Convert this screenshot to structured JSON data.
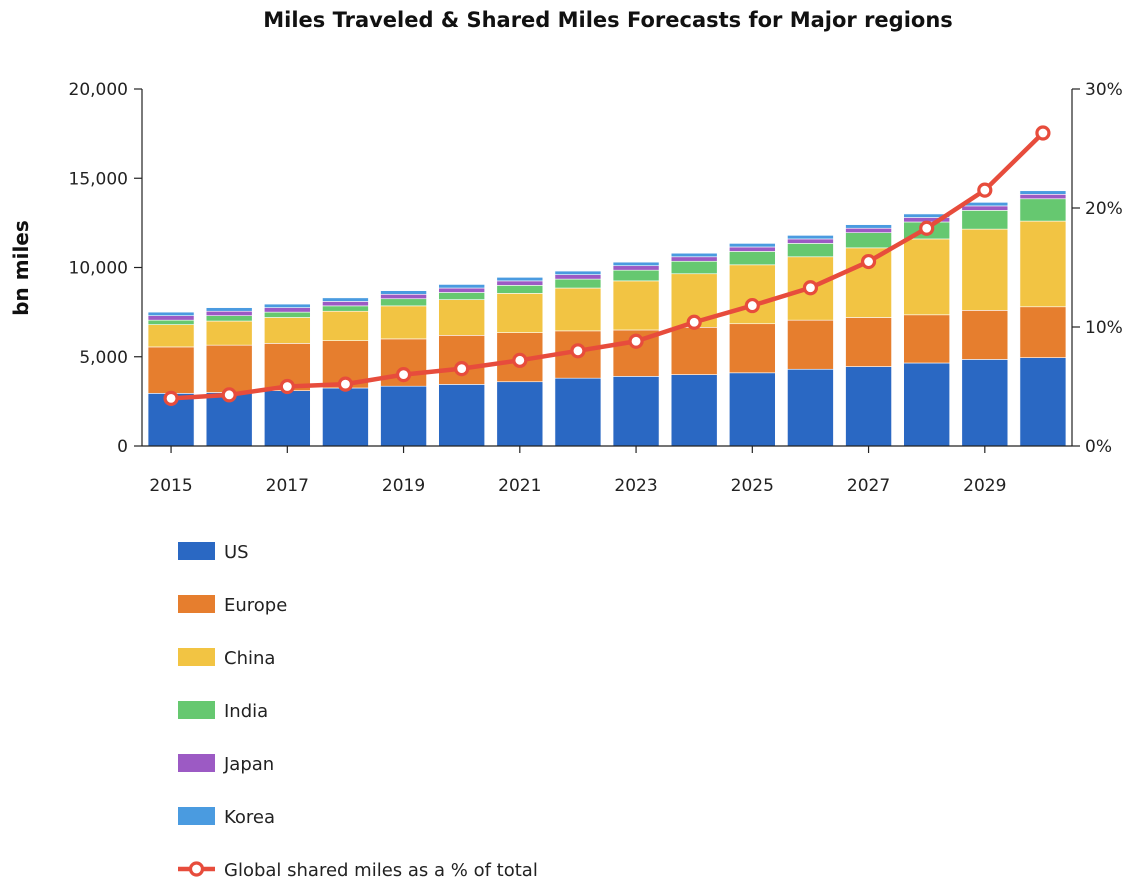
{
  "chart_data": {
    "type": "bar",
    "stacked": true,
    "title": "Miles Traveled & Shared Miles Forecasts for Major regions",
    "ylabel": "bn miles",
    "y2label": "",
    "ylim": [
      0,
      20000
    ],
    "yticks": [
      "0",
      "5,000",
      "10,000",
      "15,000",
      "20,000"
    ],
    "y2lim": [
      0,
      30
    ],
    "y2ticks": [
      "0%",
      "10%",
      "20%",
      "30%"
    ],
    "x": [
      2015,
      2016,
      2017,
      2018,
      2019,
      2020,
      2021,
      2022,
      2023,
      2024,
      2025,
      2026,
      2027,
      2028,
      2029,
      2030
    ],
    "xticks": [
      "2015",
      "2017",
      "2019",
      "2021",
      "2023",
      "2025",
      "2027",
      "2029"
    ],
    "series": [
      {
        "name": "US",
        "color": "#2a68c3",
        "values": [
          2950,
          3000,
          3100,
          3250,
          3350,
          3450,
          3600,
          3800,
          3900,
          4000,
          4100,
          4300,
          4450,
          4650,
          4850,
          4950
        ]
      },
      {
        "name": "Europe",
        "color": "#e67e2e",
        "values": [
          2600,
          2650,
          2650,
          2650,
          2650,
          2750,
          2750,
          2650,
          2600,
          2650,
          2750,
          2750,
          2750,
          2700,
          2750,
          2850
        ]
      },
      {
        "name": "China",
        "color": "#f2c443",
        "values": [
          1250,
          1350,
          1450,
          1650,
          1850,
          2000,
          2200,
          2400,
          2750,
          3000,
          3300,
          3550,
          3900,
          4250,
          4550,
          4800
        ]
      },
      {
        "name": "India",
        "color": "#66c870",
        "values": [
          250,
          300,
          300,
          300,
          400,
          400,
          450,
          500,
          600,
          700,
          750,
          750,
          850,
          950,
          1050,
          1250
        ]
      },
      {
        "name": "Japan",
        "color": "#9c5ac4",
        "values": [
          250,
          250,
          250,
          250,
          250,
          250,
          250,
          250,
          250,
          250,
          250,
          250,
          250,
          250,
          250,
          250
        ]
      },
      {
        "name": "Korea",
        "color": "#4a9be0",
        "values": [
          200,
          200,
          200,
          200,
          200,
          200,
          200,
          200,
          200,
          200,
          200,
          200,
          200,
          200,
          200,
          200
        ]
      }
    ],
    "line_series": {
      "name": "Global shared miles as a % of total",
      "color": "#e74c3c",
      "axis": "right",
      "values": [
        4.0,
        4.3,
        5.0,
        5.2,
        6.0,
        6.5,
        7.2,
        8.0,
        8.8,
        10.4,
        11.8,
        13.3,
        15.5,
        18.3,
        21.5,
        26.3
      ]
    },
    "legend_position": "bottom-left",
    "grid": false
  }
}
